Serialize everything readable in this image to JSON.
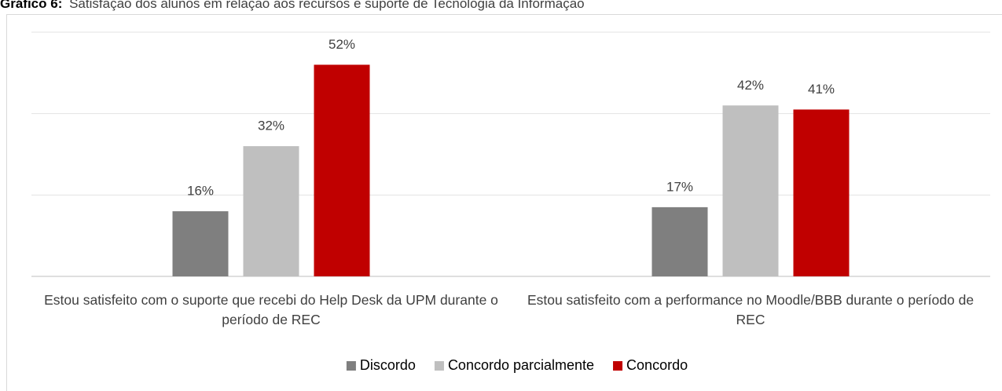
{
  "chart_data": {
    "type": "bar",
    "figure_label": "Gráfico 6:",
    "title": "Satisfação dos alunos em relação aos recursos e suporte de Tecnologia da Informação",
    "categories": [
      "Estou satisfeito com o suporte que recebi do Help Desk da UPM durante o período de REC",
      "Estou satisfeito com a performance no Moodle/BBB durante o período de REC"
    ],
    "series": [
      {
        "name": "Discordo",
        "color": "#7f7f7f",
        "values": [
          16,
          17
        ],
        "value_labels": [
          "16%",
          "17%"
        ]
      },
      {
        "name": "Concordo parcialmente",
        "color": "#bfbfbf",
        "values": [
          32,
          42
        ],
        "value_labels": [
          "32%",
          "42%"
        ]
      },
      {
        "name": "Concordo",
        "color": "#c00000",
        "values": [
          52,
          41
        ],
        "value_labels": [
          "52%",
          "41%"
        ]
      }
    ],
    "ylim": [
      0,
      60
    ],
    "yticks": [
      0,
      20,
      40,
      60
    ],
    "grid": true,
    "legend": "bottom"
  }
}
